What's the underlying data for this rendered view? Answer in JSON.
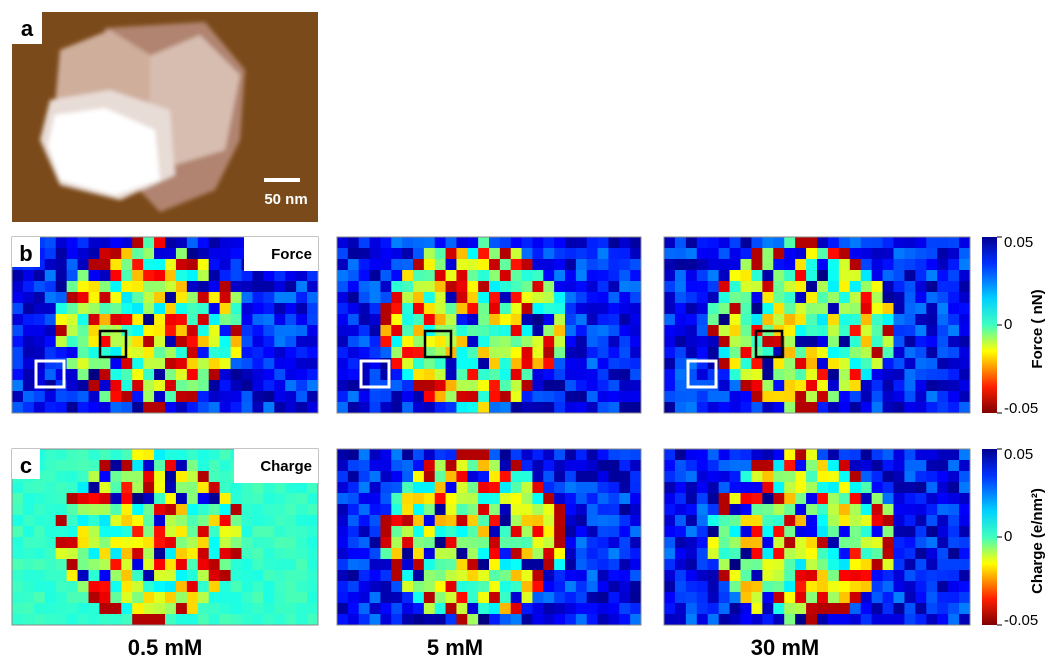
{
  "panels": {
    "a": {
      "label": "a",
      "scale_bar": "50 nm"
    },
    "b": {
      "label": "b",
      "tag": "Force",
      "colorbar": {
        "title": "Force ( nN)",
        "ticks": [
          0.05,
          0,
          -0.05
        ]
      }
    },
    "c": {
      "label": "c",
      "tag": "Charge",
      "colorbar": {
        "title": "Charge (e/nm²)",
        "ticks": [
          0.05,
          0,
          -0.05
        ]
      }
    }
  },
  "conditions": [
    "0.5 mM",
    "5 mM",
    "30 mM"
  ]
}
